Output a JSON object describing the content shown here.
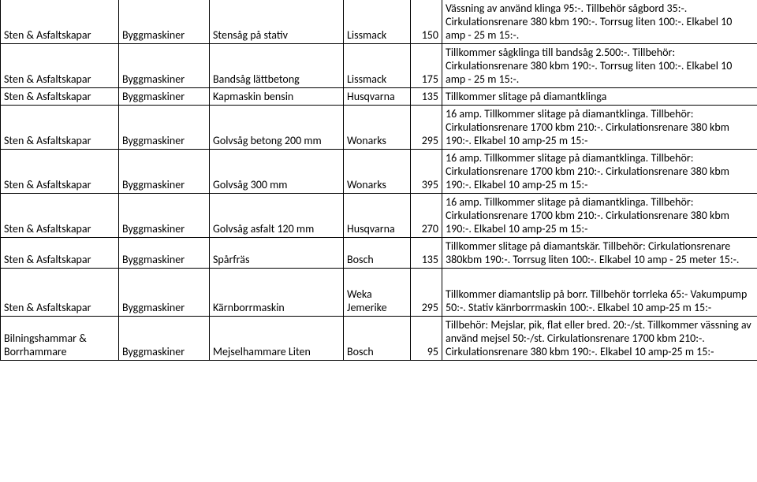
{
  "table": {
    "columns_classes": [
      "col0",
      "col1",
      "col2",
      "col3",
      "col4",
      "col5"
    ],
    "rows": [
      {
        "sep": true,
        "cells": [
          "Sten & Asfaltskapar",
          "Byggmaskiner",
          "Stensåg på stativ",
          "Lissmack",
          "150",
          "Vässning av använd klinga 95:-. Tillbehör sågbord 35:-. Cirkulationsrenare 380 kbm 190:-. Torrsug liten 100:-. Elkabel 10 amp - 25 m 15:-."
        ]
      },
      {
        "sep": true,
        "cells": [
          "Sten & Asfaltskapar",
          "Byggmaskiner",
          "Bandsåg lättbetong",
          "Lissmack",
          "175",
          "Tillkommer sågklinga till bandsåg 2.500:-. Tillbehör: Cirkulationsrenare 380 kbm 190:-. Torrsug liten 100:-. Elkabel 10 amp - 25 m 15:-."
        ]
      },
      {
        "sep": true,
        "cells": [
          "Sten & Asfaltskapar",
          "Byggmaskiner",
          "Kapmaskin bensin",
          "Husqvarna",
          "135",
          "Tillkommer slitage på diamantklinga"
        ]
      },
      {
        "sep": true,
        "cells": [
          "Sten & Asfaltskapar",
          "Byggmaskiner",
          "Golvsåg betong 200 mm",
          "Wonarks",
          "295",
          "16 amp. Tillkommer slitage på diamantklinga. Tillbehör: Cirkulationsrenare 1700 kbm 210:-. Cirkulationsrenare 380 kbm 190:-. Elkabel 10 amp-25 m 15:-"
        ]
      },
      {
        "sep": true,
        "cells": [
          "Sten & Asfaltskapar",
          "Byggmaskiner",
          "Golvsåg 300 mm",
          "Wonarks",
          "395",
          "16 amp. Tillkommer slitage på diamantklinga. Tillbehör: Cirkulationsrenare 1700 kbm 210:-. Cirkulationsrenare 380 kbm 190:-. Elkabel 10 amp-25 m 15:-"
        ]
      },
      {
        "sep": true,
        "cells": [
          "Sten & Asfaltskapar",
          "Byggmaskiner",
          "Golvsåg asfalt 120 mm",
          "Husqvarna",
          "270",
          "16 amp. Tillkommer slitage på diamantklinga. Tillbehör: Cirkulationsrenare 1700 kbm 210:-. Cirkulationsrenare 380 kbm 190:-. Elkabel 10 amp-25 m 15:-"
        ]
      },
      {
        "sep": true,
        "cells": [
          "Sten & Asfaltskapar",
          "Byggmaskiner",
          "Spårfräs",
          "Bosch",
          "135",
          "Tillkommer slitage på diamantskär. Tillbehör: Cirkulationsrenare 380kbm 190:-. Torrsug liten 100:-. Elkabel 10 amp - 25 meter 15:-."
        ]
      },
      {
        "spacer": true
      },
      {
        "sep": true,
        "cells": [
          "Sten & Asfaltskapar",
          "Byggmaskiner",
          "Kärnborrmaskin",
          "Weka Jemerike",
          "295",
          "Tillkommer diamantslip på borr. Tillbehör torrleka 65:- Vakumpump 50:-. Stativ känrborrmaskin 100:-. Elkabel 10 amp-25 m 15:-"
        ]
      },
      {
        "sep": true,
        "cells": [
          "Bilningshammar & Borrhammare",
          "Byggmaskiner",
          "Mejselhammare Liten",
          "Bosch",
          "95",
          "Tillbehör: Mejslar, pik, flat eller bred. 20:-/st. Tillkommer vässning av använd mejsel 50:-/st. Cirkulationsrenare 1700 kbm 210:-. Cirkulationsrenare 380 kbm 190:-. Elkabel 10 amp-25 m 15:-"
        ]
      }
    ]
  }
}
